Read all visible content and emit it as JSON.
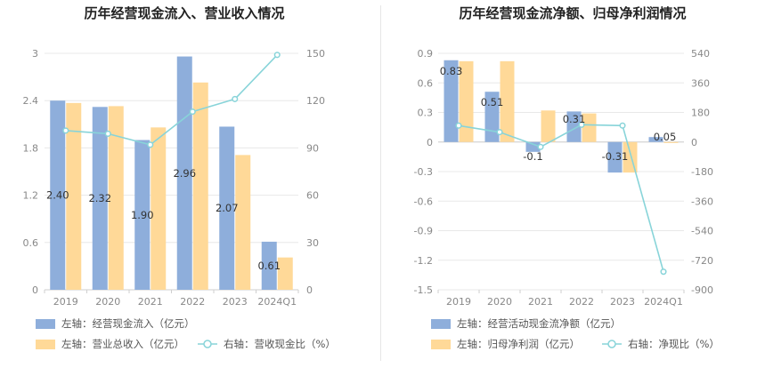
{
  "charts": [
    {
      "title": "历年经营现金流入、营业收入情况",
      "categories": [
        "2019",
        "2020",
        "2021",
        "2022",
        "2023",
        "2024Q1"
      ],
      "left_ticks": [
        "0",
        "0.6",
        "1.2",
        "1.8",
        "2.4",
        "3"
      ],
      "right_ticks": [
        "0",
        "30",
        "60",
        "90",
        "120",
        "150"
      ],
      "legend": [
        "左轴：经营现金流入（亿元）",
        "左轴：营业总收入（亿元）",
        "右轴：营收现金比（%）"
      ],
      "colors": {
        "bar1": "#8eaedb",
        "bar2": "#ffd998",
        "line": "#88d4d9"
      }
    },
    {
      "title": "历年经营现金流净额、归母净利润情况",
      "categories": [
        "2019",
        "2020",
        "2021",
        "2022",
        "2023",
        "2024Q1"
      ],
      "left_ticks": [
        "-1.5",
        "-1.2",
        "-0.9",
        "-0.6",
        "-0.3",
        "0",
        "0.3",
        "0.6",
        "0.9"
      ],
      "right_ticks": [
        "-900",
        "-720",
        "-540",
        "-360",
        "-180",
        "0",
        "180",
        "360",
        "540"
      ],
      "legend": [
        "左轴：经营活动现金流净额（亿元）",
        "左轴：归母净利润（亿元）",
        "右轴：净现比（%）"
      ],
      "colors": {
        "bar1": "#8eaedb",
        "bar2": "#ffd998",
        "line": "#88d4d9"
      }
    }
  ],
  "chart_data": [
    {
      "type": "bar",
      "title": "历年经营现金流入、营业收入情况",
      "categories": [
        "2019",
        "2020",
        "2021",
        "2022",
        "2023",
        "2024Q1"
      ],
      "ylim": [
        0,
        3
      ],
      "y2lim": [
        0,
        150
      ],
      "series": [
        {
          "name": "左轴：经营现金流入（亿元）",
          "axis": "left",
          "kind": "bar",
          "values": [
            2.4,
            2.32,
            1.9,
            2.96,
            2.07,
            0.61
          ],
          "labels": [
            "2.40",
            "2.32",
            "1.90",
            "2.96",
            "2.07",
            "0.61"
          ]
        },
        {
          "name": "左轴：营业总收入（亿元）",
          "axis": "left",
          "kind": "bar",
          "values": [
            2.37,
            2.33,
            2.06,
            2.63,
            1.71,
            0.41
          ]
        },
        {
          "name": "右轴：营收现金比（%）",
          "axis": "right",
          "kind": "line",
          "values": [
            101,
            99,
            92,
            113,
            121,
            149
          ]
        }
      ],
      "grid": true,
      "legend_position": "bottom"
    },
    {
      "type": "bar",
      "title": "历年经营现金流净额、归母净利润情况",
      "categories": [
        "2019",
        "2020",
        "2021",
        "2022",
        "2023",
        "2024Q1"
      ],
      "ylim": [
        -1.5,
        0.9
      ],
      "y2lim": [
        -900,
        540
      ],
      "series": [
        {
          "name": "左轴：经营活动现金流净额（亿元）",
          "axis": "left",
          "kind": "bar",
          "values": [
            0.83,
            0.51,
            -0.1,
            0.31,
            -0.31,
            0.05
          ],
          "labels": [
            "0.83",
            "0.51",
            "-0.1",
            "0.31",
            "-0.31",
            "0.05"
          ]
        },
        {
          "name": "左轴：归母净利润（亿元）",
          "axis": "left",
          "kind": "bar",
          "values": [
            0.82,
            0.82,
            0.32,
            0.29,
            -0.31,
            -0.01
          ]
        },
        {
          "name": "右轴：净现比（%）",
          "axis": "right",
          "kind": "line",
          "values": [
            100,
            60,
            -30,
            105,
            100,
            -790
          ]
        }
      ],
      "grid": true,
      "legend_position": "bottom"
    }
  ]
}
